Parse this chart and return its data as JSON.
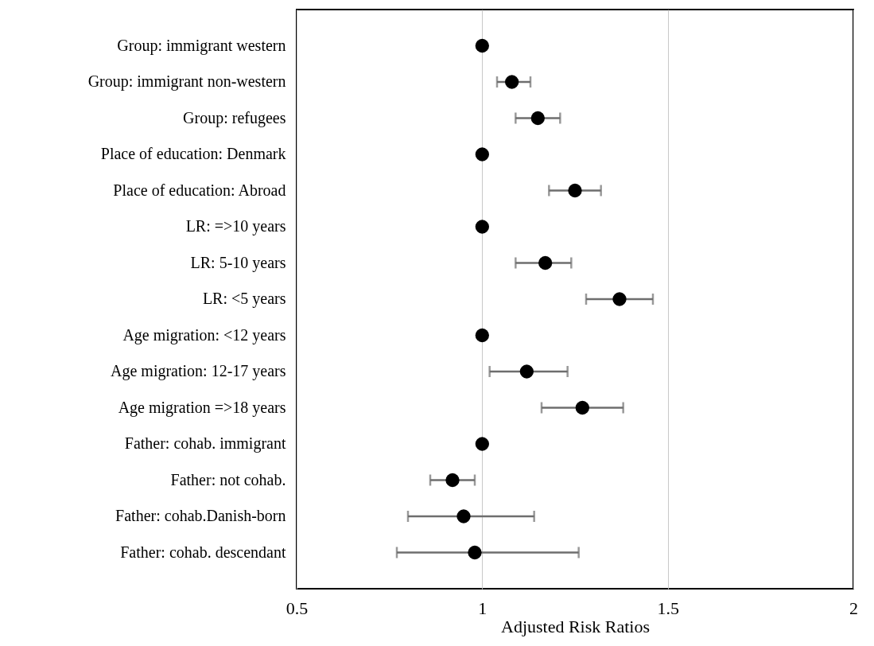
{
  "chart_data": {
    "type": "scatter",
    "xlabel": "Adjusted Risk Ratios",
    "orientation": "horizontal",
    "categories": [
      "Group: immigrant western",
      "Group: immigrant non-western",
      "Group: refugees",
      "Place of education: Denmark",
      "Place of education: Abroad",
      "LR: =>10 years",
      "LR: 5-10 years",
      "LR: <5 years",
      "Age migration: <12 years",
      "Age migration: 12-17 years",
      "Age migration =>18 years",
      "Father: cohab. immigrant",
      "Father: not cohab.",
      "Father: cohab.Danish-born",
      "Father: cohab. descendant"
    ],
    "series": [
      {
        "color": "#000000",
        "values": [
          1,
          1.08,
          1.15,
          1,
          1.25,
          1,
          1.17,
          1.37,
          1,
          1.12,
          1.27,
          1,
          0.92,
          0.95,
          0.98
        ],
        "errors": [
          null,
          [
            1.04,
            1.13
          ],
          [
            1.09,
            1.21
          ],
          null,
          [
            1.18,
            1.32
          ],
          null,
          [
            1.09,
            1.24
          ],
          [
            1.28,
            1.46
          ],
          null,
          [
            1.02,
            1.23
          ],
          [
            1.16,
            1.38
          ],
          null,
          [
            0.86,
            0.98
          ],
          [
            0.8,
            1.14
          ],
          [
            0.77,
            1.26
          ]
        ]
      }
    ],
    "xlim": [
      0.5,
      2
    ],
    "xticks": [
      0.5,
      1,
      1.5,
      2
    ],
    "grid": "x",
    "marker": "circle"
  }
}
